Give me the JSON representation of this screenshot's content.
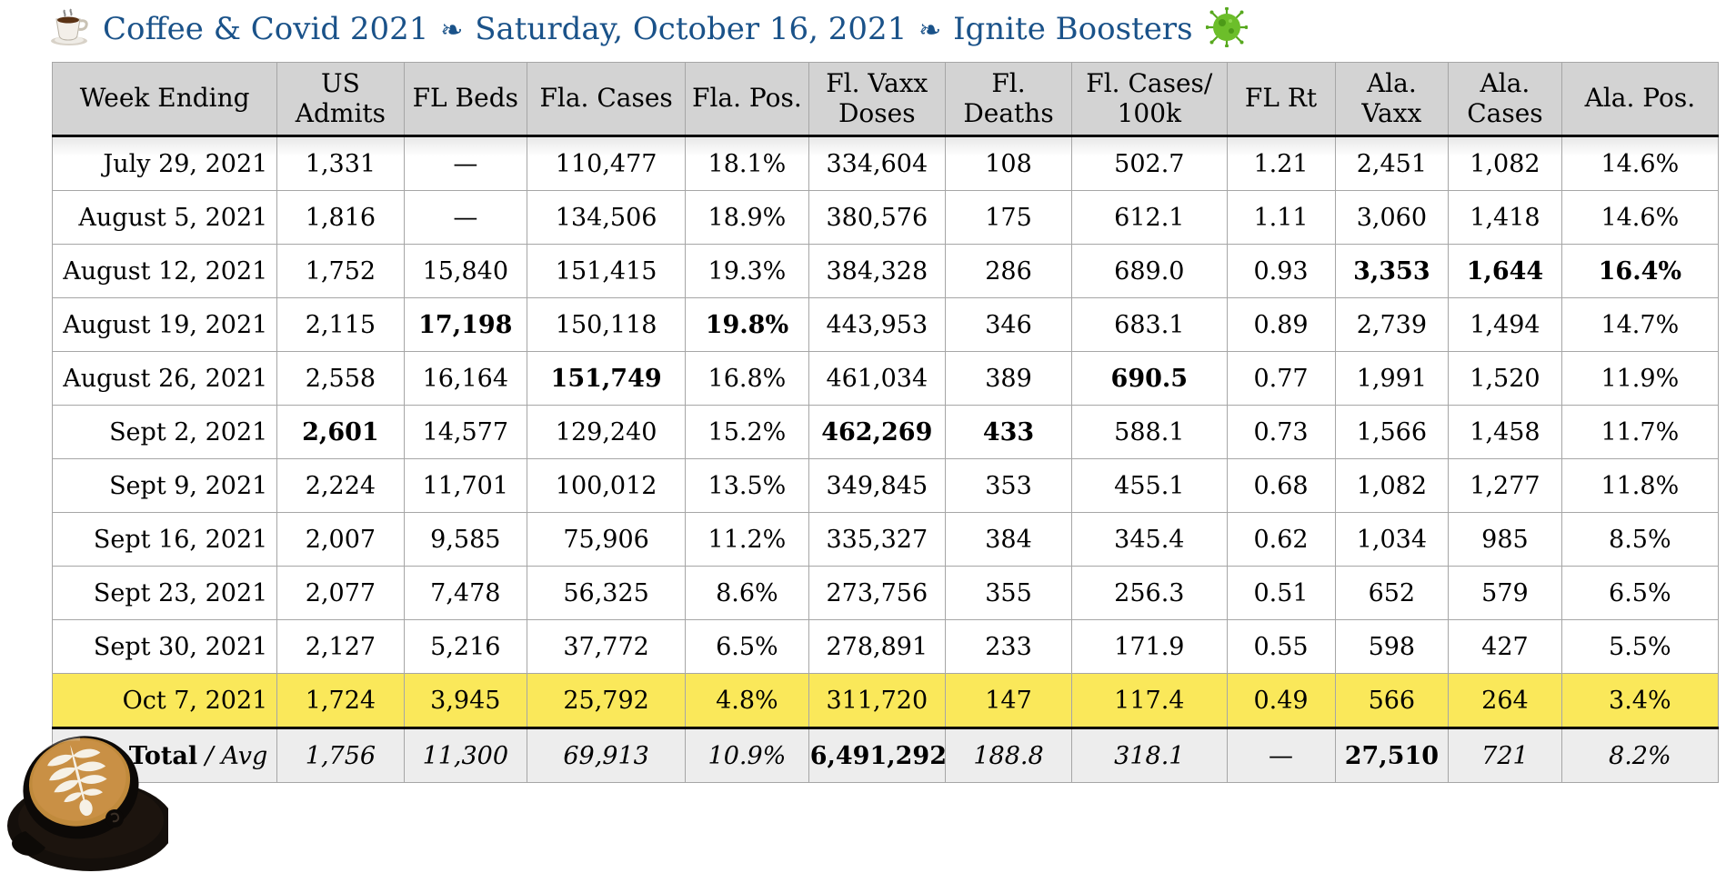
{
  "title": {
    "part1": "Coffee & Covid 2021",
    "separator": "❧",
    "part2": "Saturday, October 16, 2021",
    "part3": "Ignite Boosters",
    "coffee_icon": "coffee-cup-emoji",
    "virus_icon": "microbe-emoji",
    "color": "#1A5289"
  },
  "table": {
    "columns": [
      "Week Ending",
      "US\nAdmits",
      "FL Beds",
      "Fla. Cases",
      "Fla. Pos.",
      "Fl. Vaxx\nDoses",
      "Fl.\nDeaths",
      "Fl. Cases/\n100k",
      "FL Rt",
      "Ala.\nVaxx",
      "Ala.\nCases",
      "Ala. Pos."
    ],
    "rows": [
      {
        "cells": [
          "July 29, 2021",
          "1,331",
          "—",
          "110,477",
          "18.1%",
          "334,604",
          "108",
          "502.7",
          "1.21",
          "2,451",
          "1,082",
          "14.6%"
        ],
        "bold": [],
        "highlight": false
      },
      {
        "cells": [
          "August 5, 2021",
          "1,816",
          "—",
          "134,506",
          "18.9%",
          "380,576",
          "175",
          "612.1",
          "1.11",
          "3,060",
          "1,418",
          "14.6%"
        ],
        "bold": [],
        "highlight": false
      },
      {
        "cells": [
          "August 12, 2021",
          "1,752",
          "15,840",
          "151,415",
          "19.3%",
          "384,328",
          "286",
          "689.0",
          "0.93",
          "3,353",
          "1,644",
          "16.4%"
        ],
        "bold": [
          9,
          10,
          11
        ],
        "highlight": false
      },
      {
        "cells": [
          "August 19, 2021",
          "2,115",
          "17,198",
          "150,118",
          "19.8%",
          "443,953",
          "346",
          "683.1",
          "0.89",
          "2,739",
          "1,494",
          "14.7%"
        ],
        "bold": [
          2,
          4
        ],
        "highlight": false
      },
      {
        "cells": [
          "August 26, 2021",
          "2,558",
          "16,164",
          "151,749",
          "16.8%",
          "461,034",
          "389",
          "690.5",
          "0.77",
          "1,991",
          "1,520",
          "11.9%"
        ],
        "bold": [
          3,
          7
        ],
        "highlight": false
      },
      {
        "cells": [
          "Sept 2, 2021",
          "2,601",
          "14,577",
          "129,240",
          "15.2%",
          "462,269",
          "433",
          "588.1",
          "0.73",
          "1,566",
          "1,458",
          "11.7%"
        ],
        "bold": [
          1,
          5,
          6
        ],
        "highlight": false
      },
      {
        "cells": [
          "Sept 9, 2021",
          "2,224",
          "11,701",
          "100,012",
          "13.5%",
          "349,845",
          "353",
          "455.1",
          "0.68",
          "1,082",
          "1,277",
          "11.8%"
        ],
        "bold": [],
        "highlight": false
      },
      {
        "cells": [
          "Sept 16, 2021",
          "2,007",
          "9,585",
          "75,906",
          "11.2%",
          "335,327",
          "384",
          "345.4",
          "0.62",
          "1,034",
          "985",
          "8.5%"
        ],
        "bold": [],
        "highlight": false
      },
      {
        "cells": [
          "Sept 23, 2021",
          "2,077",
          "7,478",
          "56,325",
          "8.6%",
          "273,756",
          "355",
          "256.3",
          "0.51",
          "652",
          "579",
          "6.5%"
        ],
        "bold": [],
        "highlight": false
      },
      {
        "cells": [
          "Sept 30, 2021",
          "2,127",
          "5,216",
          "37,772",
          "6.5%",
          "278,891",
          "233",
          "171.9",
          "0.55",
          "598",
          "427",
          "5.5%"
        ],
        "bold": [],
        "highlight": false
      },
      {
        "cells": [
          "Oct 7, 2021",
          "1,724",
          "3,945",
          "25,792",
          "4.8%",
          "311,720",
          "147",
          "117.4",
          "0.49",
          "566",
          "264",
          "3.4%"
        ],
        "bold": [],
        "highlight": true
      }
    ],
    "total_row": {
      "label_bold": "Total",
      "label_sep": " / ",
      "label_italic": "Avg",
      "cells": [
        "1,756",
        "11,300",
        "69,913",
        "10.9%",
        "6,491,292",
        "188.8",
        "318.1",
        "—",
        "27,510",
        "721",
        "8.2%"
      ],
      "bold": [
        4,
        8
      ],
      "dash_index": 7
    }
  },
  "decorations": {
    "coffee_photo": "latte-art-cup-photo"
  },
  "colors": {
    "title_blue": "#1A5289",
    "total_blue": "#1D5E94",
    "header_gray": "#D3D3D3",
    "highlight_yellow": "#FAE85A",
    "total_gray": "#EDEDED",
    "grid_gray": "#A6A6A6"
  }
}
